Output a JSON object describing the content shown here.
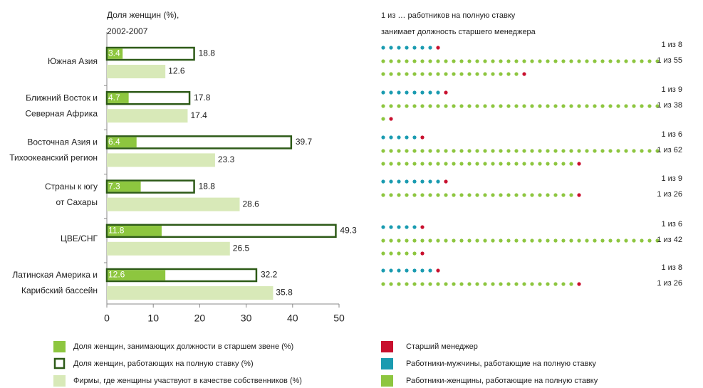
{
  "chart_data": [
    {
      "type": "hbar",
      "title": "Доля женщин (%),",
      "subtitle": "2002-2007",
      "categories": [
        [
          "Южная Азия"
        ],
        [
          "Ближний Восток и",
          "Северная Африка"
        ],
        [
          "Восточная Азия и",
          "Тихоокеанский регион"
        ],
        [
          "Страны к югу",
          "от Сахары"
        ],
        [
          "ЦВЕ/СНГ"
        ],
        [
          "Латинская Америка и",
          "Карибский бассейн"
        ]
      ],
      "series": [
        {
          "name": "Доля женщин, занимающих должности в старшем звене (%)",
          "color": "#8dc63f",
          "values": [
            3.4,
            4.7,
            6.4,
            7.3,
            11.8,
            12.6
          ]
        },
        {
          "name": "Доля женщин, работающих на полную ставку (%)",
          "color": "#2d5a17",
          "values": [
            18.8,
            17.8,
            39.7,
            18.8,
            49.3,
            32.2
          ]
        },
        {
          "name": "Фирмы, где женщины участвуют в качестве собственников (%)",
          "color": "#d8e9b8",
          "values": [
            12.6,
            17.4,
            23.3,
            28.6,
            26.5,
            35.8
          ]
        }
      ],
      "xlim": [
        0,
        50
      ],
      "xticks": [
        0,
        10,
        20,
        30,
        40,
        50
      ]
    },
    {
      "type": "dots",
      "title": "1 из … работников на полную ставку",
      "subtitle": "занимает должность старшего менеджера",
      "highlight": {
        "name": "Старший менеджер",
        "color": "#c8102e"
      },
      "series": [
        {
          "name": "Работники-мужчины, работающие на полную ставку",
          "color": "#1a9bb0",
          "values": [
            8,
            9,
            6,
            9,
            6,
            8
          ],
          "value_labels": [
            "1 из 8",
            "1 из 9",
            "1 из 6",
            "1 из 9",
            "1 из 6",
            "1 из 8"
          ]
        },
        {
          "name": "Работники-женщины, работающие на полную ставку",
          "color": "#8dc63f",
          "values": [
            55,
            38,
            62,
            26,
            42,
            26
          ],
          "value_labels": [
            "1 из 55",
            "1 из 38",
            "1 из 62",
            "1 из 26",
            "1 из 42",
            "1 из 26"
          ]
        }
      ]
    }
  ]
}
